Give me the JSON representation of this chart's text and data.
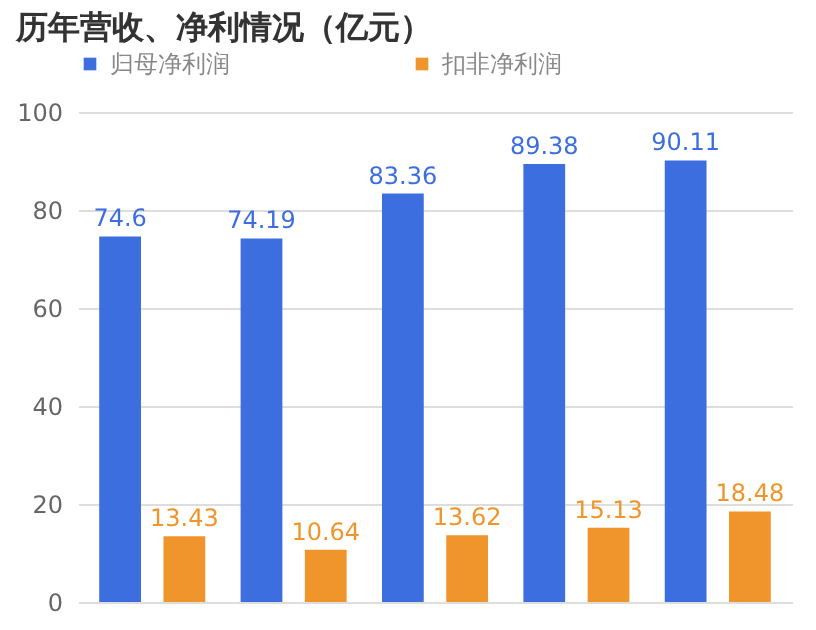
{
  "chart_data": {
    "type": "bar",
    "title": "历年营收、净利情况（亿元）",
    "categories": [
      null,
      null,
      null,
      null,
      null
    ],
    "series": [
      {
        "name": "归母净利润",
        "color": "#3d6ee0",
        "values": [
          74.6,
          74.19,
          83.36,
          89.38,
          90.11
        ]
      },
      {
        "name": "扣非净利润",
        "color": "#f0952c",
        "values": [
          13.43,
          10.64,
          13.62,
          15.13,
          18.48
        ]
      }
    ],
    "ylim": [
      0,
      100
    ],
    "yticks": [
      0,
      20,
      40,
      60,
      80,
      100
    ],
    "grid": "y",
    "legend": "top",
    "tick_labels": "y",
    "data_labels": true
  }
}
